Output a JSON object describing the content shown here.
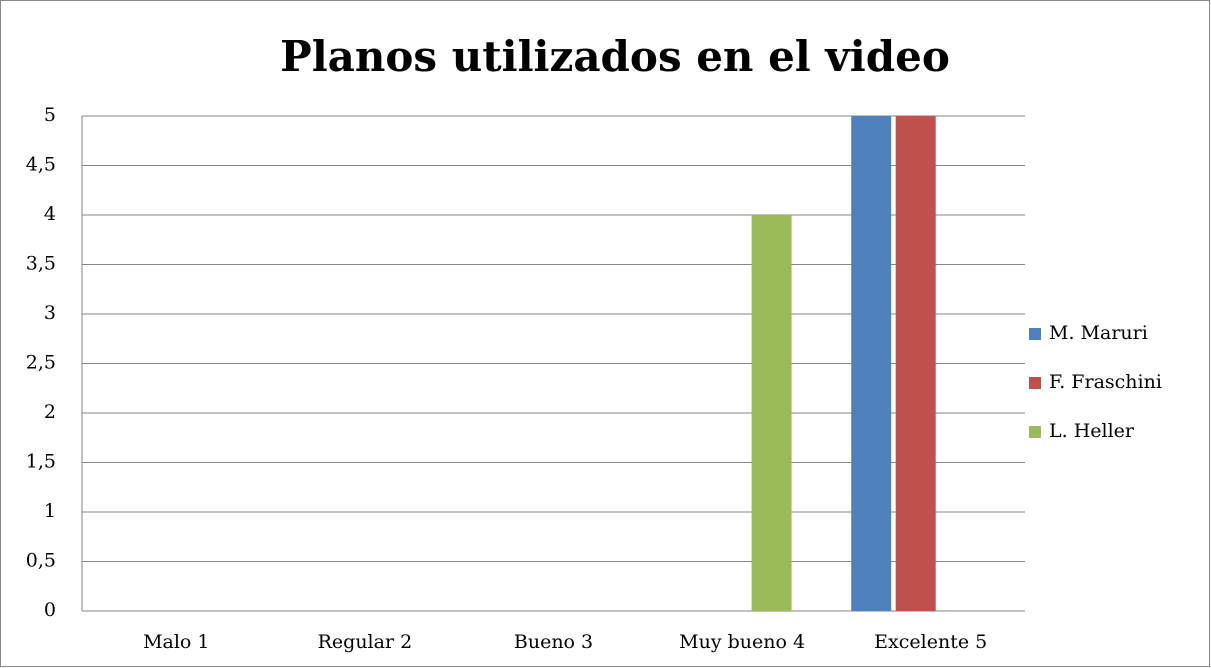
{
  "chart_data": {
    "type": "bar",
    "title": "Planos utilizados en el video",
    "categories": [
      "Malo 1",
      "Regular 2",
      "Bueno 3",
      "Muy bueno 4",
      "Excelente 5"
    ],
    "series": [
      {
        "name": "M. Maruri",
        "color": "#4f81bd",
        "values": [
          0,
          0,
          0,
          0,
          5
        ]
      },
      {
        "name": "F. Fraschini",
        "color": "#c0504d",
        "values": [
          0,
          0,
          0,
          0,
          5
        ]
      },
      {
        "name": "L. Heller",
        "color": "#9bbb59",
        "values": [
          0,
          0,
          0,
          4,
          0
        ]
      }
    ],
    "ylim": [
      0,
      5
    ],
    "yticks": [
      0,
      {
        "value": 0.5,
        "label": "0,5"
      },
      1,
      {
        "value": 1.5,
        "label": "1,5"
      },
      2,
      {
        "value": 2.5,
        "label": "2,5"
      },
      3,
      {
        "value": 3.5,
        "label": "3,5"
      },
      4,
      {
        "value": 4.5,
        "label": "4,5"
      },
      5
    ],
    "grid": true,
    "legend": "right"
  }
}
